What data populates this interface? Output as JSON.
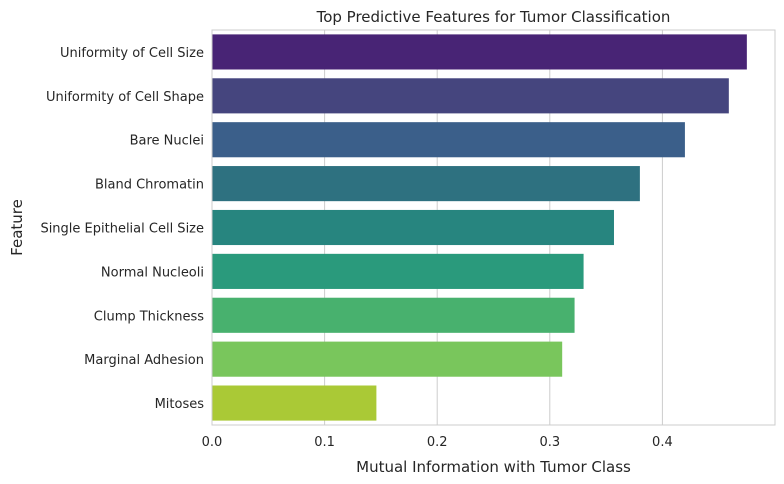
{
  "chart_data": {
    "type": "bar",
    "orientation": "horizontal",
    "title": "Top Predictive Features for Tumor Classification",
    "xlabel": "Mutual Information with Tumor Class",
    "ylabel": "Feature",
    "xlim": [
      0,
      0.5
    ],
    "xticks": [
      0.0,
      0.1,
      0.2,
      0.3,
      0.4
    ],
    "xtick_labels": [
      "0.0",
      "0.1",
      "0.2",
      "0.3",
      "0.4"
    ],
    "grid": true,
    "categories": [
      "Uniformity of Cell Size",
      "Uniformity of Cell Shape",
      "Bare Nuclei",
      "Bland Chromatin",
      "Single Epithelial Cell Size",
      "Normal Nucleoli",
      "Clump Thickness",
      "Marginal Adhesion",
      "Mitoses"
    ],
    "values": [
      0.475,
      0.459,
      0.42,
      0.38,
      0.357,
      0.33,
      0.322,
      0.311,
      0.146
    ],
    "colors": [
      "#482475",
      "#45457e",
      "#3b5f8a",
      "#2e7180",
      "#27857f",
      "#2a9a7c",
      "#48b16e",
      "#79c65c",
      "#aac936"
    ]
  }
}
